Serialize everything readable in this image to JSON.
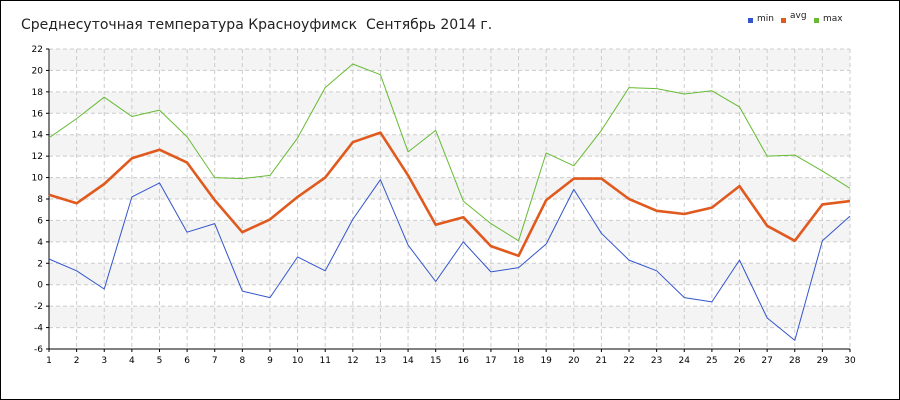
{
  "chart_data": {
    "type": "line",
    "title": "Среднесуточная температура Красноуфимск  Сентябрь 2014 г.",
    "xlabel": "",
    "ylabel": "",
    "x": [
      1,
      2,
      3,
      4,
      5,
      6,
      7,
      8,
      9,
      10,
      11,
      12,
      13,
      14,
      15,
      16,
      17,
      18,
      19,
      20,
      21,
      22,
      23,
      24,
      25,
      26,
      27,
      28,
      29,
      30
    ],
    "ylim": [
      -6,
      22
    ],
    "yticks": [
      -6,
      -4,
      -2,
      0,
      2,
      4,
      6,
      8,
      10,
      12,
      14,
      16,
      18,
      20,
      22
    ],
    "grid": true,
    "legend_position": "top-right",
    "series": [
      {
        "name": "min",
        "color": "#3355cc",
        "values": [
          2.4,
          1.3,
          -0.4,
          8.2,
          9.5,
          4.9,
          5.7,
          -0.6,
          -1.2,
          2.6,
          1.3,
          6.1,
          9.8,
          3.7,
          0.3,
          4.0,
          1.2,
          1.6,
          3.8,
          8.9,
          4.8,
          2.3,
          1.3,
          -1.2,
          -1.6,
          2.3,
          -3.1,
          -5.2,
          4.1,
          6.4
        ]
      },
      {
        "name": "avg",
        "color": "#e05a1e",
        "values": [
          8.4,
          7.6,
          9.4,
          11.8,
          12.6,
          11.4,
          7.9,
          4.9,
          6.1,
          8.2,
          10.0,
          13.3,
          14.2,
          10.2,
          5.6,
          6.3,
          3.6,
          2.7,
          7.9,
          9.9,
          9.9,
          8.0,
          6.9,
          6.6,
          7.2,
          9.2,
          5.5,
          4.1,
          7.5,
          7.8
        ]
      },
      {
        "name": "max",
        "color": "#66bb33",
        "values": [
          13.7,
          15.5,
          17.5,
          15.7,
          16.3,
          13.8,
          10.0,
          9.9,
          10.2,
          13.7,
          18.4,
          20.6,
          19.6,
          12.4,
          14.4,
          7.8,
          5.7,
          4.1,
          12.3,
          11.1,
          14.4,
          18.4,
          18.3,
          17.8,
          18.1,
          16.6,
          12.0,
          12.1,
          10.6,
          9.0
        ]
      }
    ]
  }
}
